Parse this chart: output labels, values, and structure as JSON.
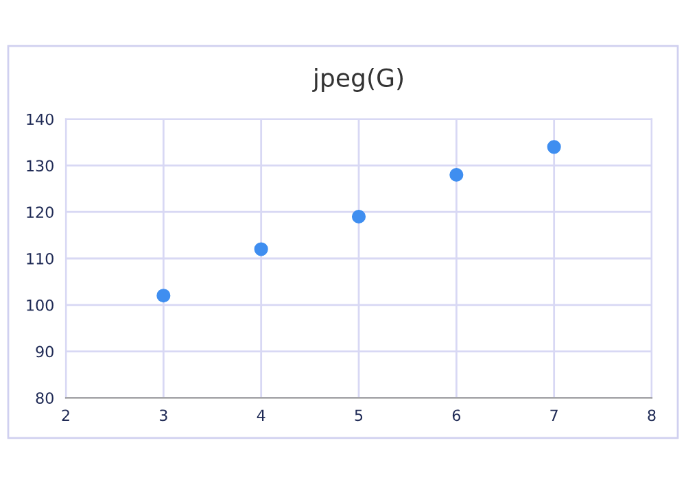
{
  "chart_data": {
    "type": "scatter",
    "title": "jpeg(G)",
    "x": [
      3,
      4,
      5,
      6,
      7
    ],
    "series": [
      {
        "color": "#3f8ef0",
        "values": [
          102,
          112,
          119,
          128,
          134
        ]
      }
    ],
    "xlim": [
      2,
      8
    ],
    "xticks": [
      2,
      3,
      4,
      5,
      6,
      7,
      8
    ],
    "ylim": [
      80,
      140
    ],
    "yticks": [
      80,
      90,
      100,
      110,
      120,
      130,
      140
    ],
    "grid": true,
    "marker": "circle",
    "legend": false
  }
}
